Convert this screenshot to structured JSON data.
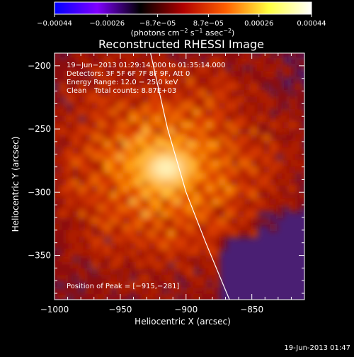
{
  "chart_data": {
    "type": "heatmap",
    "title": "Reconstructed RHESSI Image",
    "xlabel": "Heliocentric X (arcsec)",
    "ylabel": "Heliocentric Y (arcsec)",
    "xlim": [
      -1000,
      -810
    ],
    "ylim": [
      -385,
      -190
    ],
    "x_ticks": [
      -1000,
      -950,
      -900,
      -850
    ],
    "x_tick_labels": [
      "−1000",
      "−950",
      "−900",
      "−850"
    ],
    "y_ticks": [
      -200,
      -250,
      -300,
      -350
    ],
    "y_tick_labels": [
      "−200",
      "−250",
      "−300",
      "−350"
    ],
    "colorbar": {
      "range": [
        -0.00044,
        0.00044
      ],
      "tick_values": [
        -0.00044,
        -0.00026,
        -8.7e-05,
        8.7e-05,
        0.00026,
        0.00044
      ],
      "tick_labels": [
        "−0.00044",
        "−0.00026",
        "−8.7e−05",
        "8.7e−05",
        "0.00026",
        "0.00044"
      ],
      "units": "(photons cm",
      "units_exp1": "−2",
      "units_mid": " s",
      "units_exp2": "−1",
      "units_end": " asec",
      "units_exp3": "−2",
      "units_close": ")",
      "stops": [
        "#0000ff",
        "#8000ff",
        "#000000",
        "#b00000",
        "#ff6000",
        "#ffff40",
        "#ffffff"
      ]
    },
    "annotations": {
      "time_range": "19−Jun−2013 01:29:14.000 to 01:35:14.000",
      "detectors": "Detectors: 3F 5F 6F 7F 8F 9F, Att 0",
      "energy_range": "Energy Range: 12.0 − 25.0 keV",
      "clean_label": "Clean",
      "total_counts": "Total counts: 8.87E+03",
      "peak_position": "Position of Peak = [−915,−281]"
    },
    "peak": [
      -915,
      -281
    ],
    "limb_curve": [
      [
        -927,
        -190
      ],
      [
        -914,
        -250
      ],
      [
        -900,
        -300
      ],
      [
        -885,
        -340
      ],
      [
        -867,
        -385
      ]
    ],
    "background_color": "#4a1f73"
  },
  "footer": {
    "timestamp": "19-Jun-2013 01:47"
  }
}
